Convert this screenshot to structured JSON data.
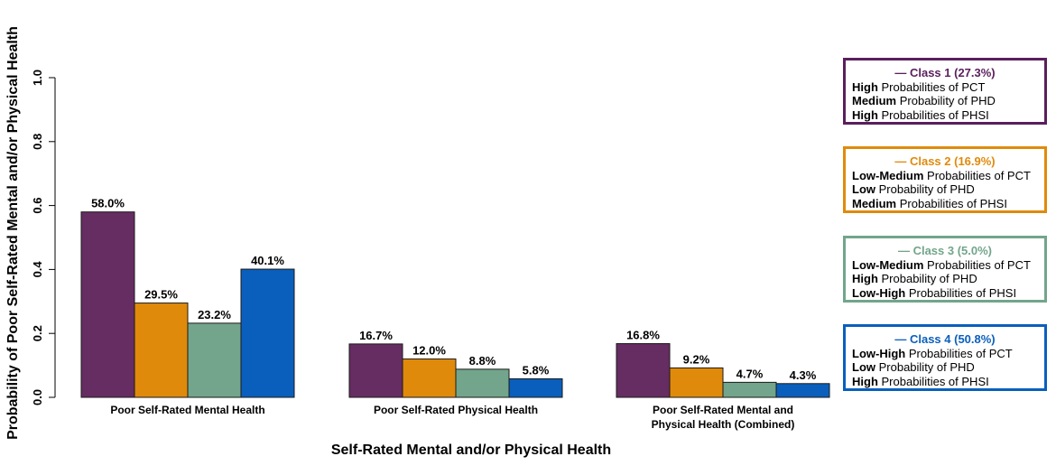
{
  "chart_data": {
    "type": "bar",
    "title": "",
    "xlabel": "Self-Rated Mental and/or Physical Health",
    "ylabel": "Probability of Poor Self-Rated Mental and/or Physical Health",
    "ylim": [
      0,
      1.0
    ],
    "yticks": [
      "0.0",
      "0.2",
      "0.4",
      "0.6",
      "0.8",
      "1.0"
    ],
    "categories": [
      [
        "Poor Self-Rated Mental Health"
      ],
      [
        "Poor Self-Rated Physical Health"
      ],
      [
        "Poor Self-Rated Mental and",
        "Physical Health (Combined)"
      ]
    ],
    "series": [
      {
        "name": "Class 1 (27.3%)",
        "color": "#662D62",
        "values": [
          0.58,
          0.167,
          0.168
        ],
        "labels": [
          "58.0%",
          "16.7%",
          "16.8%"
        ]
      },
      {
        "name": "Class 2 (16.9%)",
        "color": "#E08A0B",
        "values": [
          0.295,
          0.12,
          0.092
        ],
        "labels": [
          "29.5%",
          "12.0%",
          "9.2%"
        ]
      },
      {
        "name": "Class 3 (5.0%)",
        "color": "#72A58B",
        "values": [
          0.232,
          0.088,
          0.047
        ],
        "labels": [
          "23.2%",
          "8.8%",
          "4.7%"
        ]
      },
      {
        "name": "Class 4 (50.8%)",
        "color": "#0A5FBD",
        "values": [
          0.401,
          0.058,
          0.043
        ],
        "labels": [
          "40.1%",
          "5.8%",
          "4.3%"
        ]
      }
    ],
    "legend_placement": "right",
    "grid": false
  },
  "legend": [
    {
      "title": "— Class 1 (27.3%)",
      "color": "#5A1F5C",
      "lines": [
        {
          "bold": "High",
          "rest": " Probabilities of PCT"
        },
        {
          "bold": "Medium",
          "rest": " Probability of PHD"
        },
        {
          "bold": "High",
          "rest": " Probabilities of PHSI"
        }
      ]
    },
    {
      "title": "— Class 2 (16.9%)",
      "color": "#E08A0B",
      "lines": [
        {
          "bold": "Low-Medium",
          "rest": " Probabilities of PCT"
        },
        {
          "bold": "Low",
          "rest": " Probability of PHD"
        },
        {
          "bold": "Medium",
          "rest": " Probabilities of PHSI"
        }
      ]
    },
    {
      "title": "— Class 3 (5.0%)",
      "color": "#72A58B",
      "lines": [
        {
          "bold": "Low-Medium",
          "rest": " Probabilities of PCT"
        },
        {
          "bold": "High",
          "rest": " Probability of PHD"
        },
        {
          "bold": "Low-High",
          "rest": " Probabilities of PHSI"
        }
      ]
    },
    {
      "title": "— Class 4 (50.8%)",
      "color": "#0A5FBD",
      "lines": [
        {
          "bold": "Low-High",
          "rest": " Probabilities of PCT"
        },
        {
          "bold": "Low",
          "rest": " Probability of PHD"
        },
        {
          "bold": "High",
          "rest": " Probabilities of PHSI"
        }
      ]
    }
  ]
}
